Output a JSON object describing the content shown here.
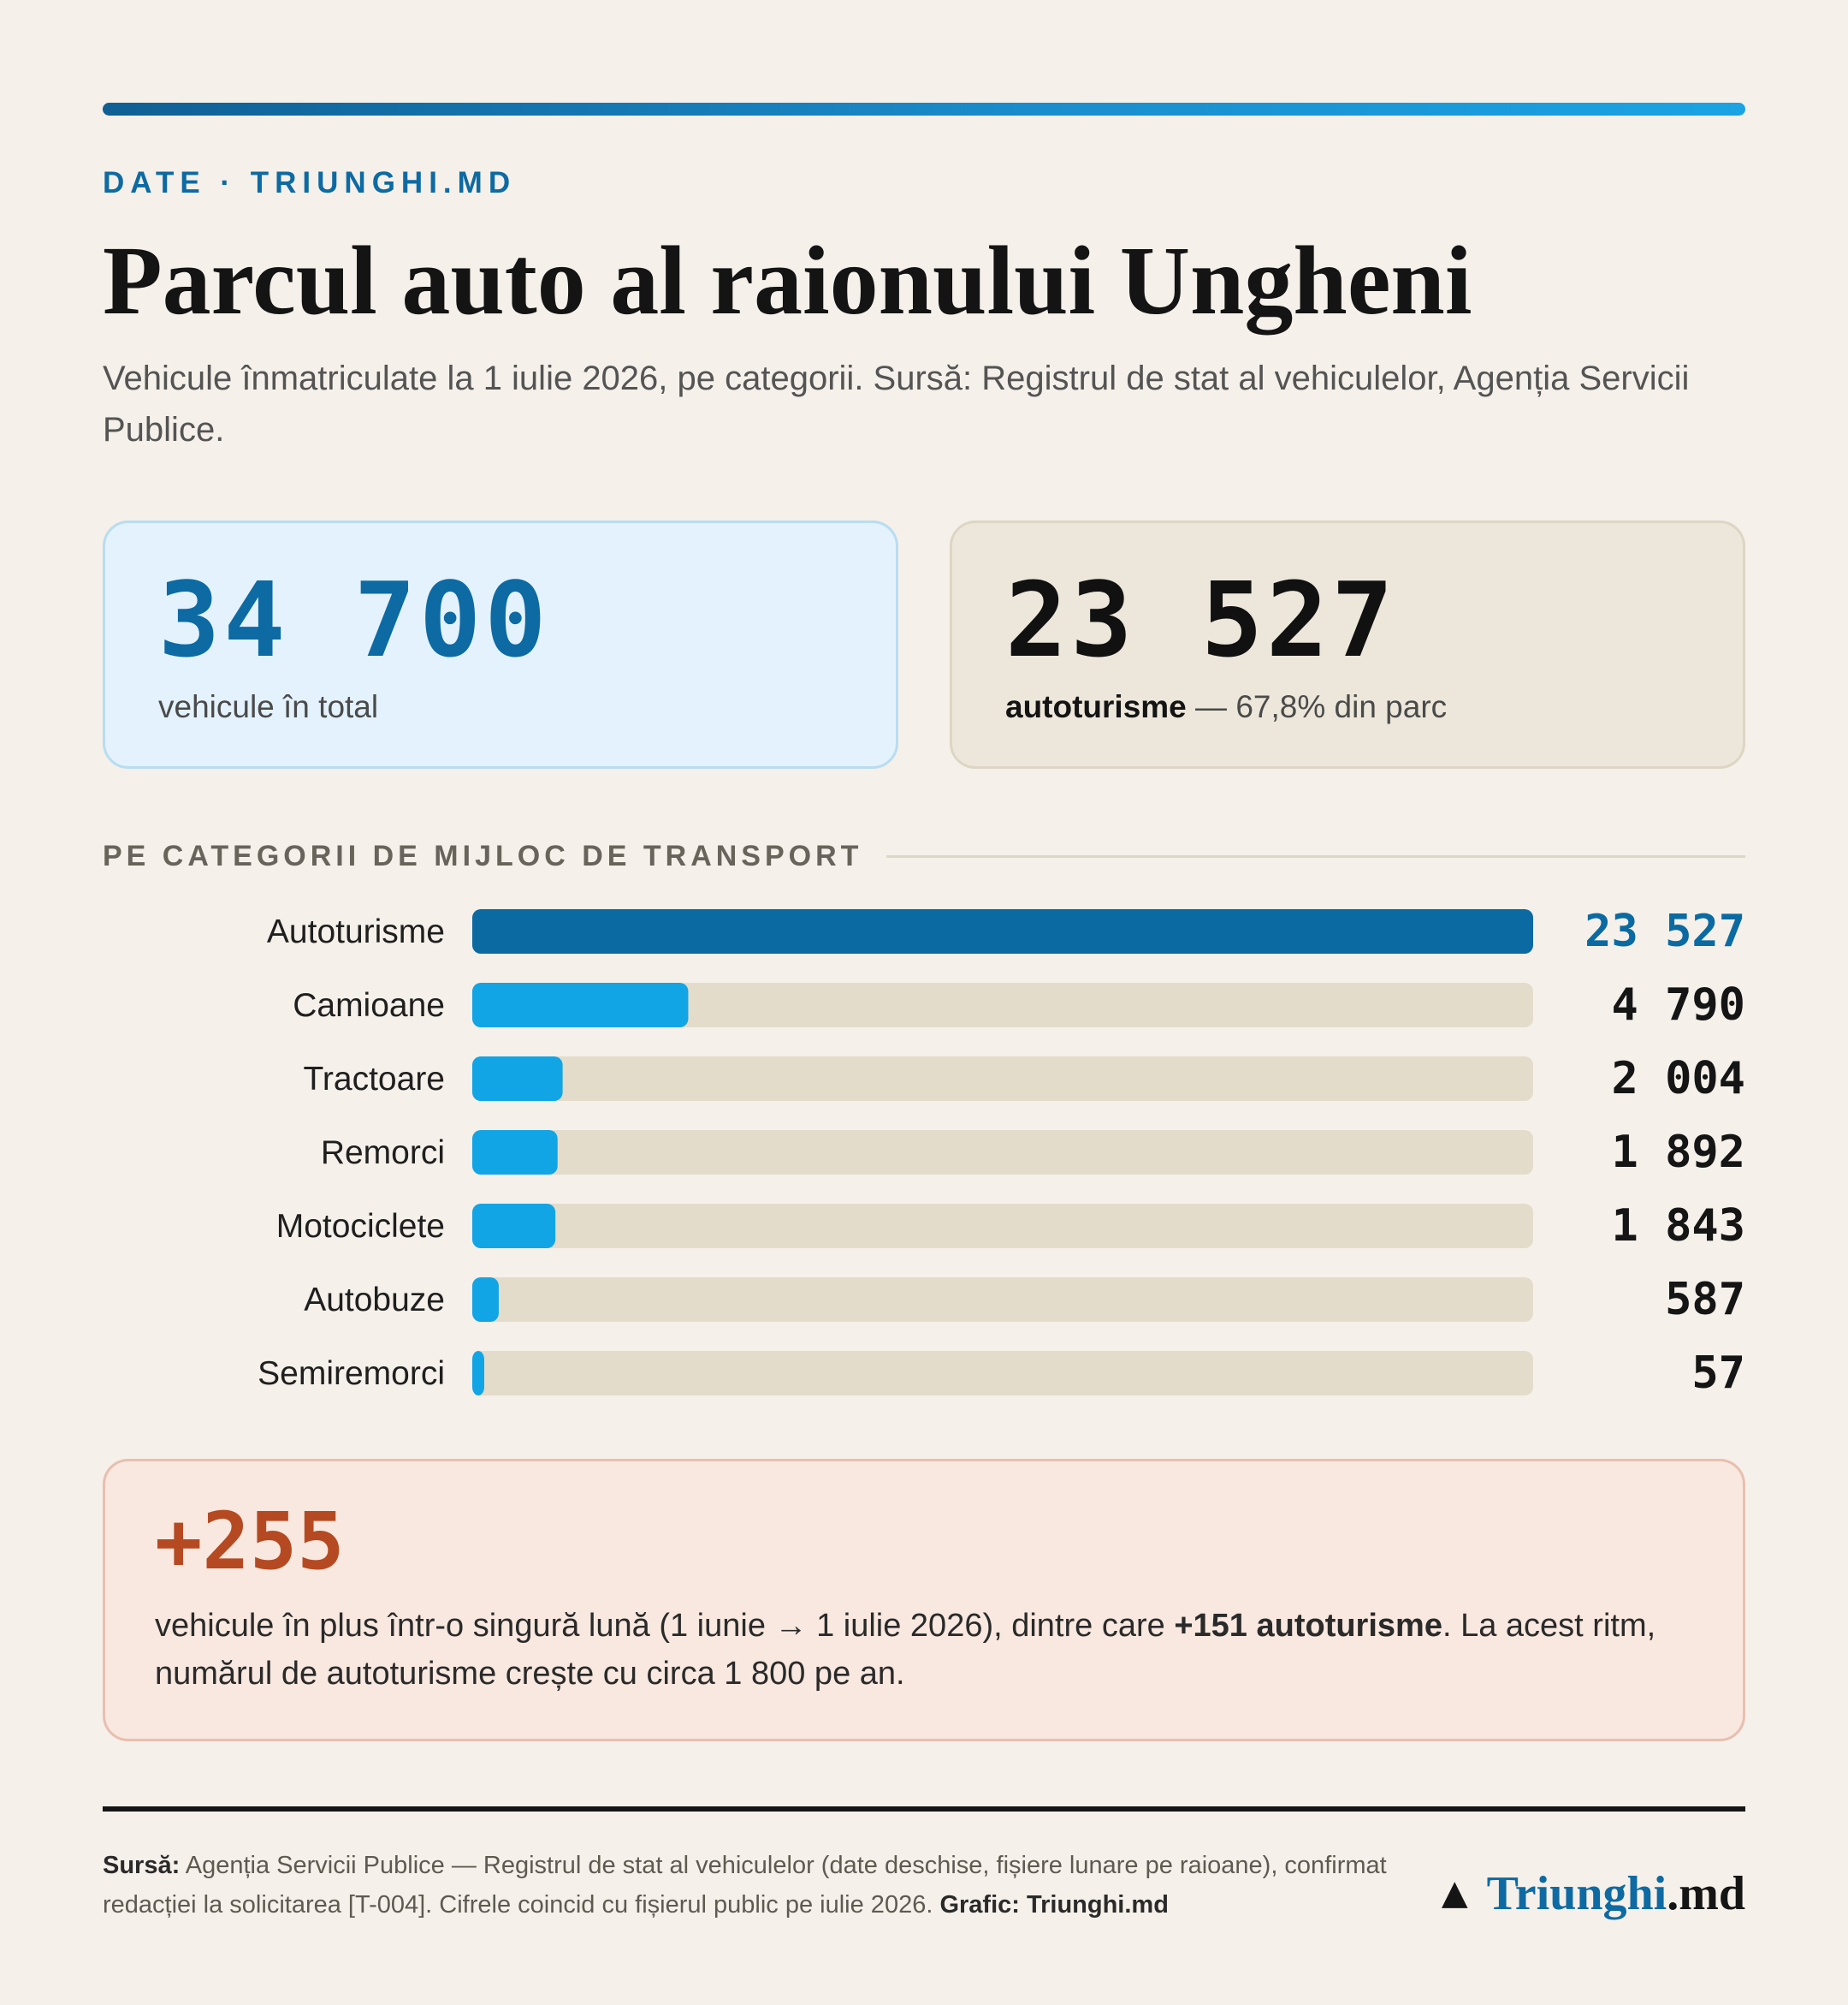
{
  "header": {
    "kicker": "DATE · TRIUNGHI.MD",
    "title": "Parcul auto al raionului Ungheni",
    "subtitle": "Vehicule înmatriculate la 1 iulie 2026, pe categorii. Sursă: Registrul de stat al vehiculelor, Agenția Servicii Publice."
  },
  "cards": {
    "total": {
      "value": "34 700",
      "caption": "vehicule în total"
    },
    "cars": {
      "value": "23 527",
      "caption_bold": "autoturisme",
      "caption_rest": " — 67,8% din parc"
    }
  },
  "section_title": "PE CATEGORII DE MIJLOC DE TRANSPORT",
  "chart_data": {
    "type": "bar",
    "orientation": "horizontal",
    "categories": [
      "Autoturisme",
      "Camioane",
      "Tractoare",
      "Remorci",
      "Motociclete",
      "Autobuze",
      "Semiremorci"
    ],
    "values": [
      23527,
      4790,
      2004,
      1892,
      1843,
      587,
      57
    ],
    "value_labels": [
      "23 527",
      "4 790",
      "2 004",
      "1 892",
      "1 843",
      "587",
      "57"
    ],
    "xlim": [
      0,
      23527
    ],
    "colors": {
      "highlight": "#0b6aa2",
      "bar": "#12a5e6",
      "track": "#e3dccb"
    },
    "grid": false
  },
  "callout": {
    "value": "+255",
    "text_before": "vehicule în plus într-o singură lună (1 iunie → 1 iulie 2026), dintre care ",
    "text_bold": "+151 autoturisme",
    "text_after": ". La acest ritm, numărul de autoturisme crește cu circa 1 800 pe an."
  },
  "footer": {
    "source_label": "Sursă:",
    "source_text": " Agenția Servicii Publice — Registrul de stat al vehiculelor (date deschise, fișiere lunare pe raioane), confirmat redacției la solicitarea [T-004]. Cifrele coincid cu fișierul public pe iulie 2026. ",
    "credit": "Grafic: Triunghi.md",
    "brand_icon": "triangle-icon",
    "brand_name": "Triunghi",
    "brand_tld": ".md"
  }
}
